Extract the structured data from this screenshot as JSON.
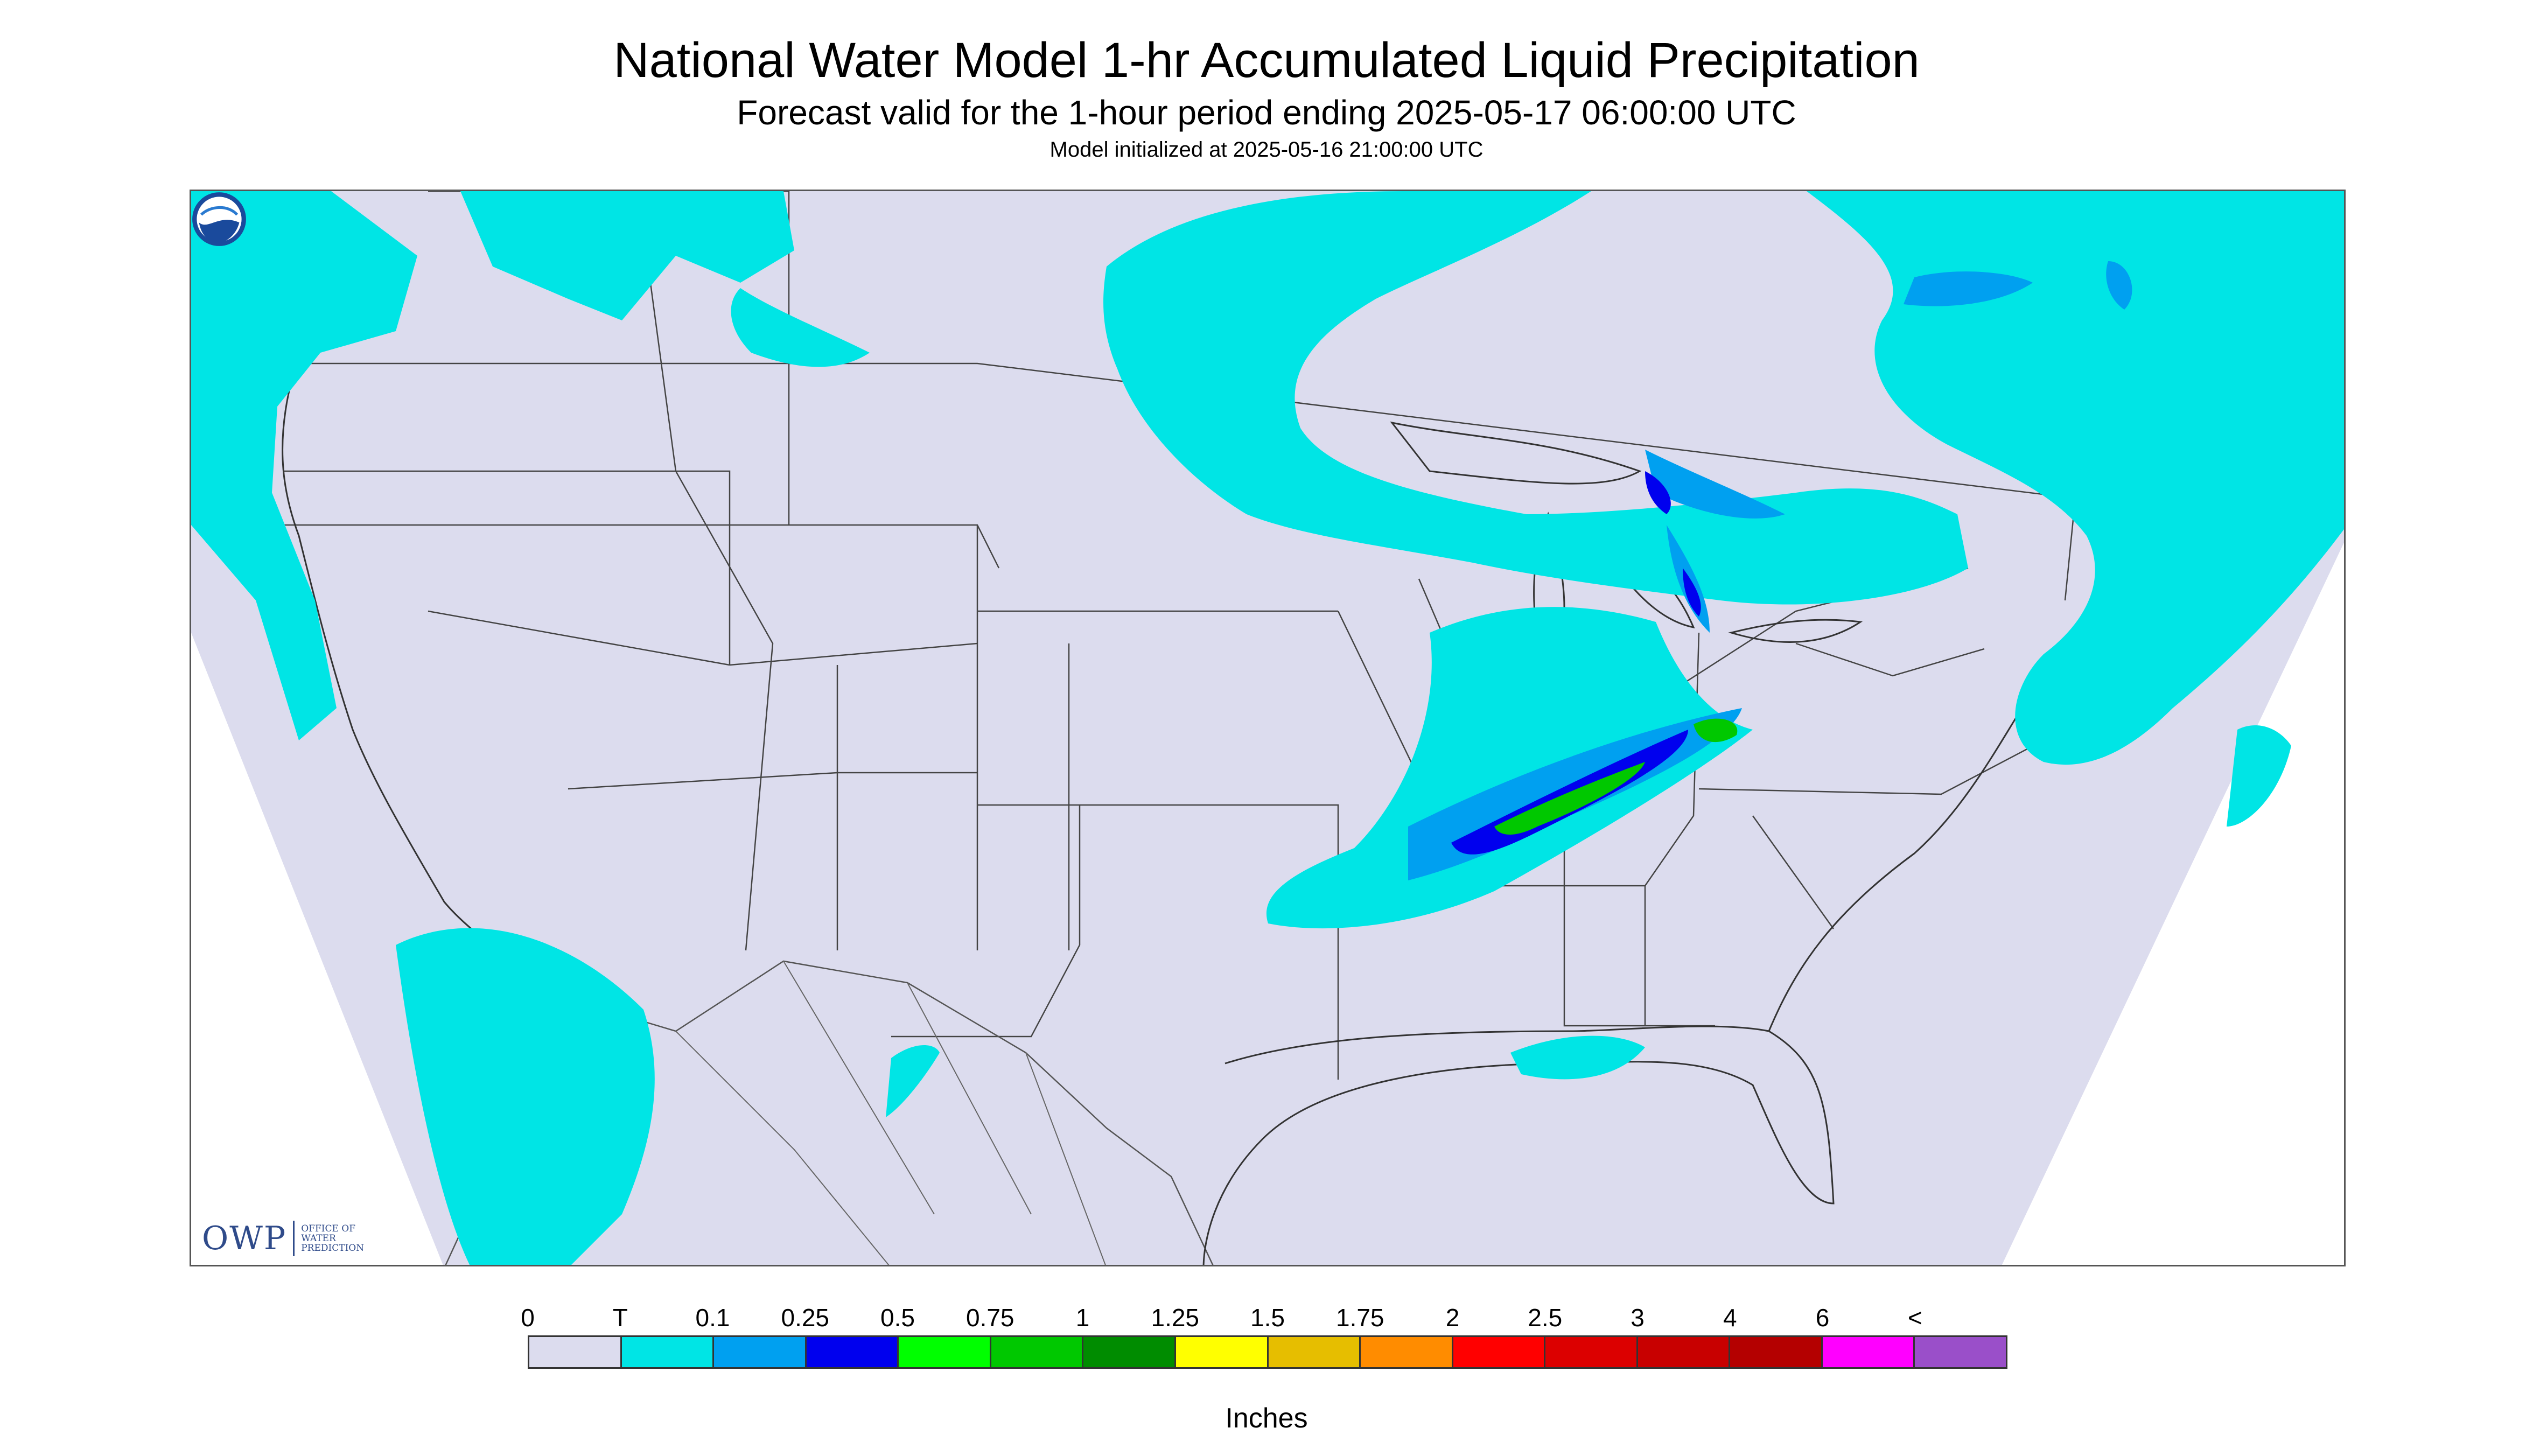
{
  "header": {
    "title": "National Water Model 1-hr Accumulated Liquid Precipitation",
    "subtitle": "Forecast valid for the 1-hour period ending 2025-05-17 06:00:00 UTC",
    "init_note": "Model initialized at 2025-05-16 21:00:00 UTC"
  },
  "map": {
    "background_color": "#dcdcee",
    "region": "CONUS",
    "logos": {
      "owp_mark": "OWP",
      "owp_text": "Office of Water Prediction",
      "noaa": "NOAA"
    }
  },
  "legend": {
    "unit": "Inches",
    "labels": [
      "0",
      "T",
      "0.1",
      "0.25",
      "0.5",
      "0.75",
      "1",
      "1.25",
      "1.5",
      "1.75",
      "2",
      "2.5",
      "3",
      "4",
      "6",
      "<"
    ],
    "colors": [
      "#dcdcee",
      "#00e5e5",
      "#00a0f0",
      "#0000ee",
      "#00ff00",
      "#00c800",
      "#008c00",
      "#ffff00",
      "#e6be00",
      "#ff8c00",
      "#ff0000",
      "#dc0000",
      "#c80000",
      "#b40000",
      "#ff00ff",
      "#9a4fc9"
    ]
  }
}
